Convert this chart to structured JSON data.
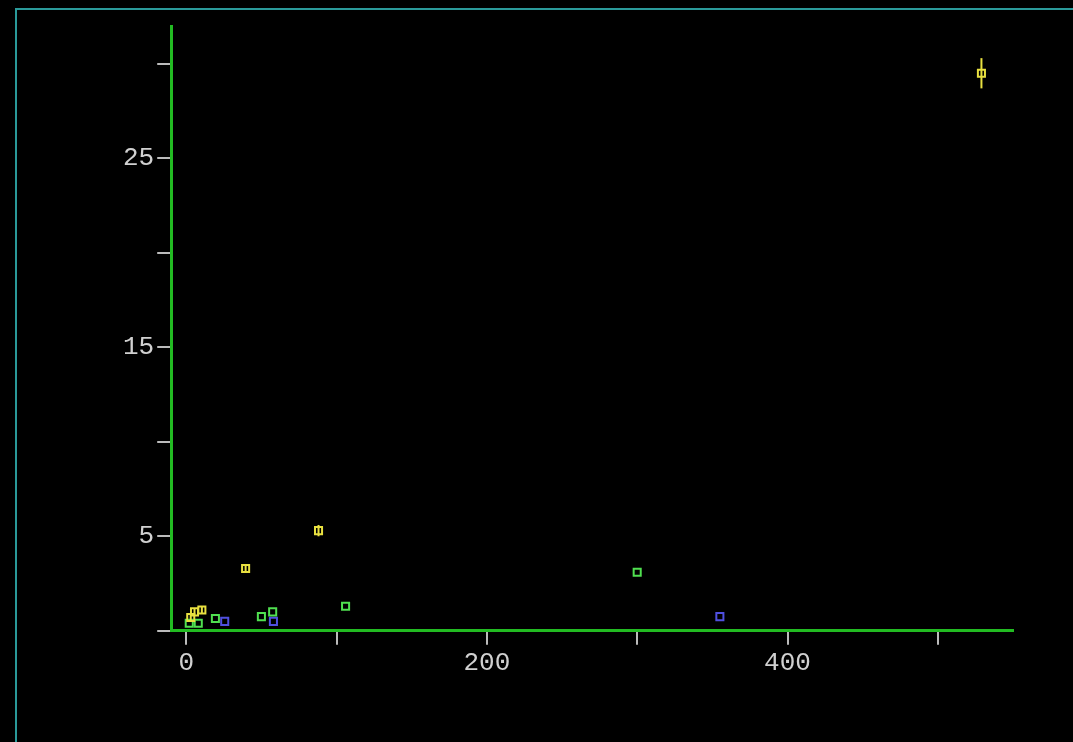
{
  "chart_data": {
    "type": "scatter",
    "xlim": [
      -10,
      550
    ],
    "ylim": [
      0,
      32
    ],
    "xticks": [
      0,
      {
        "value": 100,
        "label": null
      },
      200,
      {
        "value": 300,
        "label": null
      },
      400,
      {
        "value": 500,
        "label": null
      }
    ],
    "yticks": [
      {
        "value": 0,
        "label": null
      },
      5,
      {
        "value": 10,
        "label": null
      },
      15,
      {
        "value": 20,
        "label": null
      },
      25,
      {
        "value": 30,
        "label": null
      }
    ],
    "grid": false,
    "legend": false,
    "marker": "square",
    "series": [
      {
        "color": "#e8e040",
        "x": [
          529,
          88,
          39.5,
          10.4,
          5.5,
          3
        ],
        "values": [
          29.5,
          5.3,
          3.3,
          1.1,
          1.0,
          0.7
        ],
        "errors": [
          0.8,
          0.3,
          0.2,
          0.2,
          0.2,
          0.2
        ]
      },
      {
        "color": "#50e050",
        "x": [
          300,
          106,
          57.5,
          50,
          19.4,
          2,
          8
        ],
        "values": [
          3.1,
          1.3,
          1.0,
          0.75,
          0.65,
          0.4,
          0.4
        ]
      },
      {
        "color": "#5050e0",
        "x": [
          355,
          58,
          25.6
        ],
        "values": [
          0.75,
          0.5,
          0.5
        ]
      }
    ]
  }
}
